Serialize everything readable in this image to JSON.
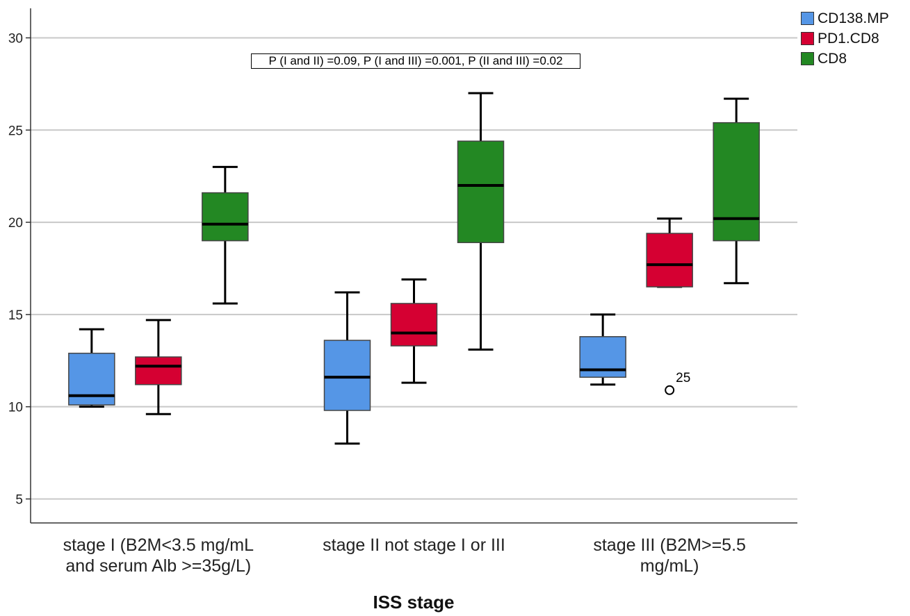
{
  "chart_data": {
    "type": "boxplot",
    "xlabel": "ISS stage",
    "ylabel": "",
    "ylim": [
      3.7,
      31.6
    ],
    "yticks": [
      5,
      10,
      15,
      20,
      25,
      30
    ],
    "grid": true,
    "legend_position": "top-right",
    "annotation": "P (I and II) =0.09, P (I and III) =0.001, P (II and III) =0.02",
    "categories": [
      "stage I (B2M<3.5 mg/mL\nand serum Alb >=35g/L)",
      "stage II not stage I or III",
      "stage III (B2M>=5.5\nmg/mL)"
    ],
    "series": [
      {
        "name": "CD138.MP",
        "color": "#5596E6",
        "boxes": [
          {
            "min": 10.0,
            "q1": 10.1,
            "median": 10.6,
            "q3": 12.9,
            "max": 14.2
          },
          {
            "min": 8.0,
            "q1": 9.8,
            "median": 11.6,
            "q3": 13.6,
            "max": 16.2
          },
          {
            "min": 11.2,
            "q1": 11.6,
            "median": 12.0,
            "q3": 13.8,
            "max": 15.0
          }
        ]
      },
      {
        "name": "PD1.CD8",
        "color": "#D50032",
        "boxes": [
          {
            "min": 9.6,
            "q1": 11.2,
            "median": 12.2,
            "q3": 12.7,
            "max": 14.7
          },
          {
            "min": 11.3,
            "q1": 13.3,
            "median": 14.0,
            "q3": 15.6,
            "max": 16.9
          },
          {
            "min": 16.5,
            "q1": 16.5,
            "median": 17.7,
            "q3": 19.4,
            "max": 20.2,
            "outliers": [
              {
                "value": 10.9,
                "label": "25"
              }
            ]
          }
        ]
      },
      {
        "name": "CD8",
        "color": "#238823",
        "boxes": [
          {
            "min": 15.6,
            "q1": 19.0,
            "median": 19.9,
            "q3": 21.6,
            "max": 23.0
          },
          {
            "min": 13.1,
            "q1": 18.9,
            "median": 22.0,
            "q3": 24.4,
            "max": 27.0
          },
          {
            "min": 16.7,
            "q1": 19.0,
            "median": 20.2,
            "q3": 25.4,
            "max": 26.7
          }
        ]
      }
    ]
  }
}
